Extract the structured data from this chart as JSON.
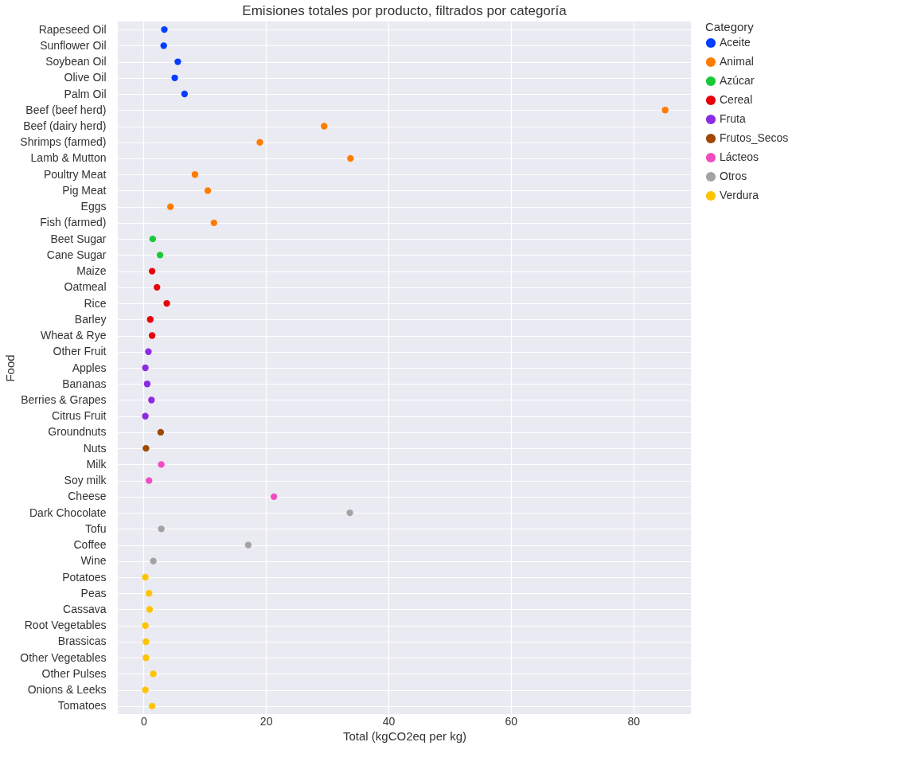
{
  "chart_data": {
    "type": "scatter",
    "orientation": "horizontal",
    "title": "Emisiones totales por producto, filtrados por categoría",
    "xlabel": "Total (kgCO2eq per kg)",
    "ylabel": "Food",
    "legend_title": "Category",
    "legend": "right",
    "grid": true,
    "marker": "circle",
    "categories": [
      "Rapeseed Oil",
      "Sunflower Oil",
      "Soybean Oil",
      "Olive Oil",
      "Palm Oil",
      "Beef (beef herd)",
      "Beef (dairy herd)",
      "Shrimps (farmed)",
      "Lamb & Mutton",
      "Poultry Meat",
      "Pig Meat",
      "Eggs",
      "Fish (farmed)",
      "Beet Sugar",
      "Cane Sugar",
      "Maize",
      "Oatmeal",
      "Rice",
      "Barley",
      "Wheat & Rye",
      "Other Fruit",
      "Apples",
      "Bananas",
      "Berries & Grapes",
      "Citrus Fruit",
      "Groundnuts",
      "Nuts",
      "Milk",
      "Soy milk",
      "Cheese",
      "Dark Chocolate",
      "Tofu",
      "Coffee",
      "Wine",
      "Potatoes",
      "Peas",
      "Cassava",
      "Root Vegetables",
      "Brassicas",
      "Other Vegetables",
      "Other Pulses",
      "Onions & Leeks",
      "Tomatoes"
    ],
    "xlim": [
      -4.2,
      89.4
    ],
    "xticks": [
      0,
      20,
      40,
      60,
      80
    ],
    "series": [
      {
        "name": "Aceite",
        "color": "#023eff",
        "values": [
          3.4,
          3.3,
          5.6,
          5.1,
          6.7,
          null,
          null,
          null,
          null,
          null,
          null,
          null,
          null,
          null,
          null,
          null,
          null,
          null,
          null,
          null,
          null,
          null,
          null,
          null,
          null,
          null,
          null,
          null,
          null,
          null,
          null,
          null,
          null,
          null,
          null,
          null,
          null,
          null,
          null,
          null,
          null,
          null,
          null
        ]
      },
      {
        "name": "Animal",
        "color": "#ff7c00",
        "values": [
          null,
          null,
          null,
          null,
          null,
          85.2,
          29.5,
          19.0,
          33.8,
          8.4,
          10.5,
          4.4,
          11.5,
          null,
          null,
          null,
          null,
          null,
          null,
          null,
          null,
          null,
          null,
          null,
          null,
          null,
          null,
          null,
          null,
          null,
          null,
          null,
          null,
          null,
          null,
          null,
          null,
          null,
          null,
          null,
          null,
          null,
          null
        ]
      },
      {
        "name": "Azúcar",
        "color": "#1ac938",
        "values": [
          null,
          null,
          null,
          null,
          null,
          null,
          null,
          null,
          null,
          null,
          null,
          null,
          null,
          1.5,
          2.7,
          null,
          null,
          null,
          null,
          null,
          null,
          null,
          null,
          null,
          null,
          null,
          null,
          null,
          null,
          null,
          null,
          null,
          null,
          null,
          null,
          null,
          null,
          null,
          null,
          null,
          null,
          null,
          null
        ]
      },
      {
        "name": "Cereal",
        "color": "#e8000b",
        "values": [
          null,
          null,
          null,
          null,
          null,
          null,
          null,
          null,
          null,
          null,
          null,
          null,
          null,
          null,
          null,
          1.4,
          2.2,
          3.8,
          1.1,
          1.4,
          null,
          null,
          null,
          null,
          null,
          null,
          null,
          null,
          null,
          null,
          null,
          null,
          null,
          null,
          null,
          null,
          null,
          null,
          null,
          null,
          null,
          null,
          null
        ]
      },
      {
        "name": "Fruta",
        "color": "#8b2be2",
        "values": [
          null,
          null,
          null,
          null,
          null,
          null,
          null,
          null,
          null,
          null,
          null,
          null,
          null,
          null,
          null,
          null,
          null,
          null,
          null,
          null,
          0.8,
          0.3,
          0.6,
          1.3,
          0.3,
          null,
          null,
          null,
          null,
          null,
          null,
          null,
          null,
          null,
          null,
          null,
          null,
          null,
          null,
          null,
          null,
          null,
          null
        ]
      },
      {
        "name": "Frutos_Secos",
        "color": "#9f4800",
        "values": [
          null,
          null,
          null,
          null,
          null,
          null,
          null,
          null,
          null,
          null,
          null,
          null,
          null,
          null,
          null,
          null,
          null,
          null,
          null,
          null,
          null,
          null,
          null,
          null,
          null,
          2.8,
          0.4,
          null,
          null,
          null,
          null,
          null,
          null,
          null,
          null,
          null,
          null,
          null,
          null,
          null,
          null,
          null,
          null
        ]
      },
      {
        "name": "Lácteos",
        "color": "#f14cc1",
        "values": [
          null,
          null,
          null,
          null,
          null,
          null,
          null,
          null,
          null,
          null,
          null,
          null,
          null,
          null,
          null,
          null,
          null,
          null,
          null,
          null,
          null,
          null,
          null,
          null,
          null,
          null,
          null,
          2.9,
          0.9,
          21.3,
          null,
          null,
          null,
          null,
          null,
          null,
          null,
          null,
          null,
          null,
          null,
          null,
          null
        ]
      },
      {
        "name": "Otros",
        "color": "#a3a3a3",
        "values": [
          null,
          null,
          null,
          null,
          null,
          null,
          null,
          null,
          null,
          null,
          null,
          null,
          null,
          null,
          null,
          null,
          null,
          null,
          null,
          null,
          null,
          null,
          null,
          null,
          null,
          null,
          null,
          null,
          null,
          null,
          33.7,
          2.9,
          17.1,
          1.6,
          null,
          null,
          null,
          null,
          null,
          null,
          null,
          null,
          null
        ]
      },
      {
        "name": "Verdura",
        "color": "#ffc400",
        "values": [
          null,
          null,
          null,
          null,
          null,
          null,
          null,
          null,
          null,
          null,
          null,
          null,
          null,
          null,
          null,
          null,
          null,
          null,
          null,
          null,
          null,
          null,
          null,
          null,
          null,
          null,
          null,
          null,
          null,
          null,
          null,
          null,
          null,
          null,
          0.3,
          0.9,
          1.0,
          0.3,
          0.4,
          0.4,
          1.6,
          0.3,
          1.4
        ]
      }
    ]
  }
}
